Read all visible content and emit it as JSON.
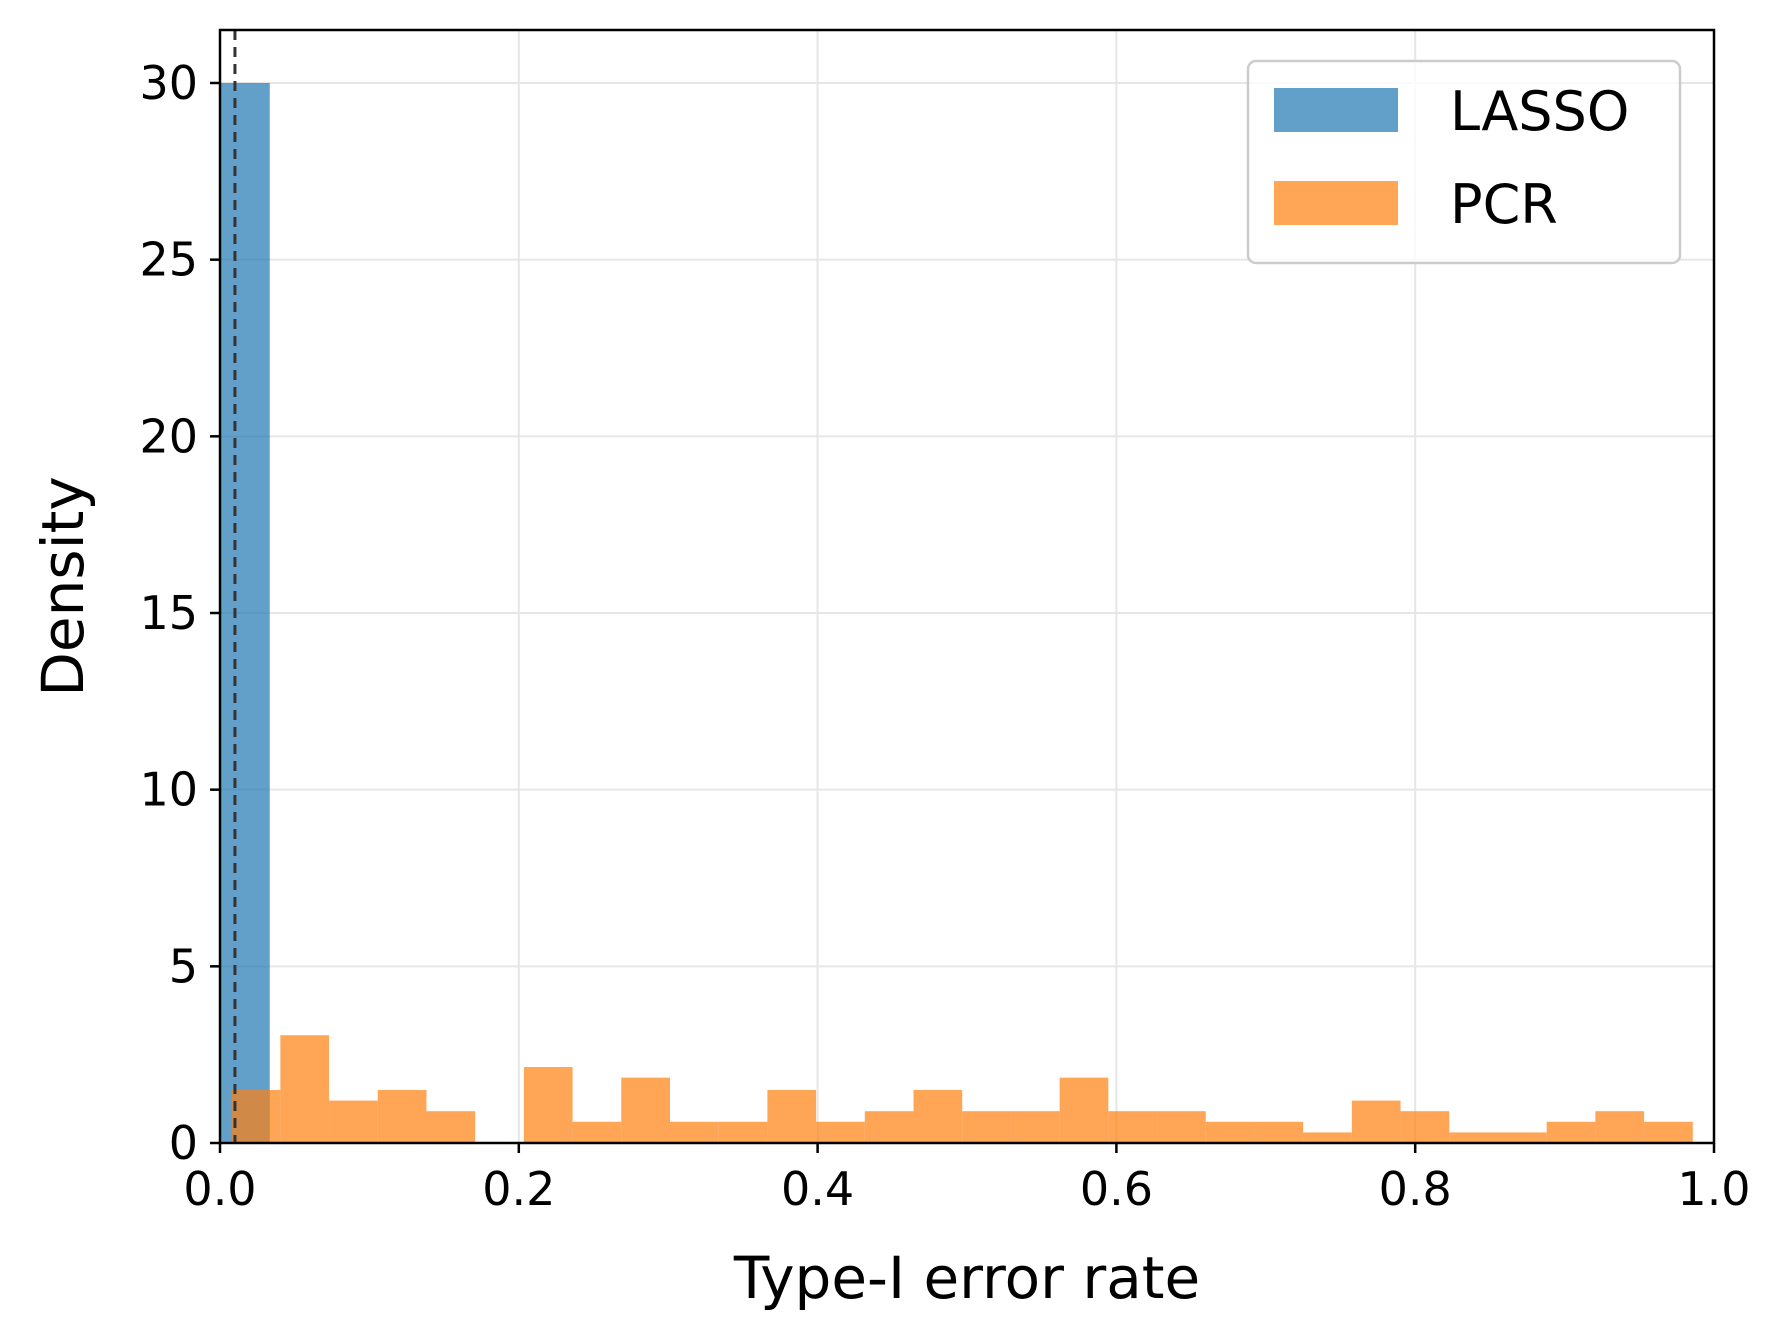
{
  "chart_data": {
    "type": "histogram",
    "xlabel": "Type-I error rate",
    "ylabel": "Density",
    "xlim": [
      0.0,
      1.0
    ],
    "ylim": [
      0,
      31.5
    ],
    "x_ticks": [
      "0.0",
      "0.2",
      "0.4",
      "0.6",
      "0.8",
      "1.0"
    ],
    "y_ticks": [
      "0",
      "5",
      "10",
      "15",
      "20",
      "25",
      "30"
    ],
    "grid": true,
    "legend_position": "top-right",
    "reference_line": {
      "x": 0.01,
      "style": "dashed",
      "color": "#333333"
    },
    "series": [
      {
        "name": "LASSO",
        "color": "#1f77b4",
        "opacity": 0.7,
        "bins": [
          {
            "x0": 0.0,
            "x1": 0.0333,
            "density": 30
          }
        ]
      },
      {
        "name": "PCR",
        "color": "#ff7f0e",
        "opacity": 0.7,
        "bins": [
          {
            "x0": 0.0078,
            "x1": 0.0404,
            "density": 1.5
          },
          {
            "x0": 0.0404,
            "x1": 0.073,
            "density": 3.05
          },
          {
            "x0": 0.073,
            "x1": 0.1056,
            "density": 1.2
          },
          {
            "x0": 0.1056,
            "x1": 0.1382,
            "density": 1.5
          },
          {
            "x0": 0.1382,
            "x1": 0.1708,
            "density": 0.9
          },
          {
            "x0": 0.1708,
            "x1": 0.2034,
            "density": 0
          },
          {
            "x0": 0.2034,
            "x1": 0.236,
            "density": 2.15
          },
          {
            "x0": 0.236,
            "x1": 0.2686,
            "density": 0.6
          },
          {
            "x0": 0.2686,
            "x1": 0.3012,
            "density": 1.85
          },
          {
            "x0": 0.3012,
            "x1": 0.3338,
            "density": 0.6
          },
          {
            "x0": 0.3338,
            "x1": 0.3664,
            "density": 0.6
          },
          {
            "x0": 0.3664,
            "x1": 0.399,
            "density": 1.5
          },
          {
            "x0": 0.399,
            "x1": 0.4316,
            "density": 0.6
          },
          {
            "x0": 0.4316,
            "x1": 0.4642,
            "density": 0.9
          },
          {
            "x0": 0.4642,
            "x1": 0.4968,
            "density": 1.5
          },
          {
            "x0": 0.4968,
            "x1": 0.5294,
            "density": 0.9
          },
          {
            "x0": 0.5294,
            "x1": 0.562,
            "density": 0.9
          },
          {
            "x0": 0.562,
            "x1": 0.5946,
            "density": 1.85
          },
          {
            "x0": 0.5946,
            "x1": 0.6272,
            "density": 0.9
          },
          {
            "x0": 0.6272,
            "x1": 0.6598,
            "density": 0.9
          },
          {
            "x0": 0.6598,
            "x1": 0.6924,
            "density": 0.6
          },
          {
            "x0": 0.6924,
            "x1": 0.725,
            "density": 0.6
          },
          {
            "x0": 0.725,
            "x1": 0.7576,
            "density": 0.3
          },
          {
            "x0": 0.7576,
            "x1": 0.7902,
            "density": 1.2
          },
          {
            "x0": 0.7902,
            "x1": 0.8228,
            "density": 0.9
          },
          {
            "x0": 0.8228,
            "x1": 0.8554,
            "density": 0.3
          },
          {
            "x0": 0.8554,
            "x1": 0.888,
            "density": 0.3
          },
          {
            "x0": 0.888,
            "x1": 0.9206,
            "density": 0.6
          },
          {
            "x0": 0.9206,
            "x1": 0.9532,
            "density": 0.9
          },
          {
            "x0": 0.9532,
            "x1": 0.9858,
            "density": 0.6
          }
        ]
      }
    ]
  }
}
